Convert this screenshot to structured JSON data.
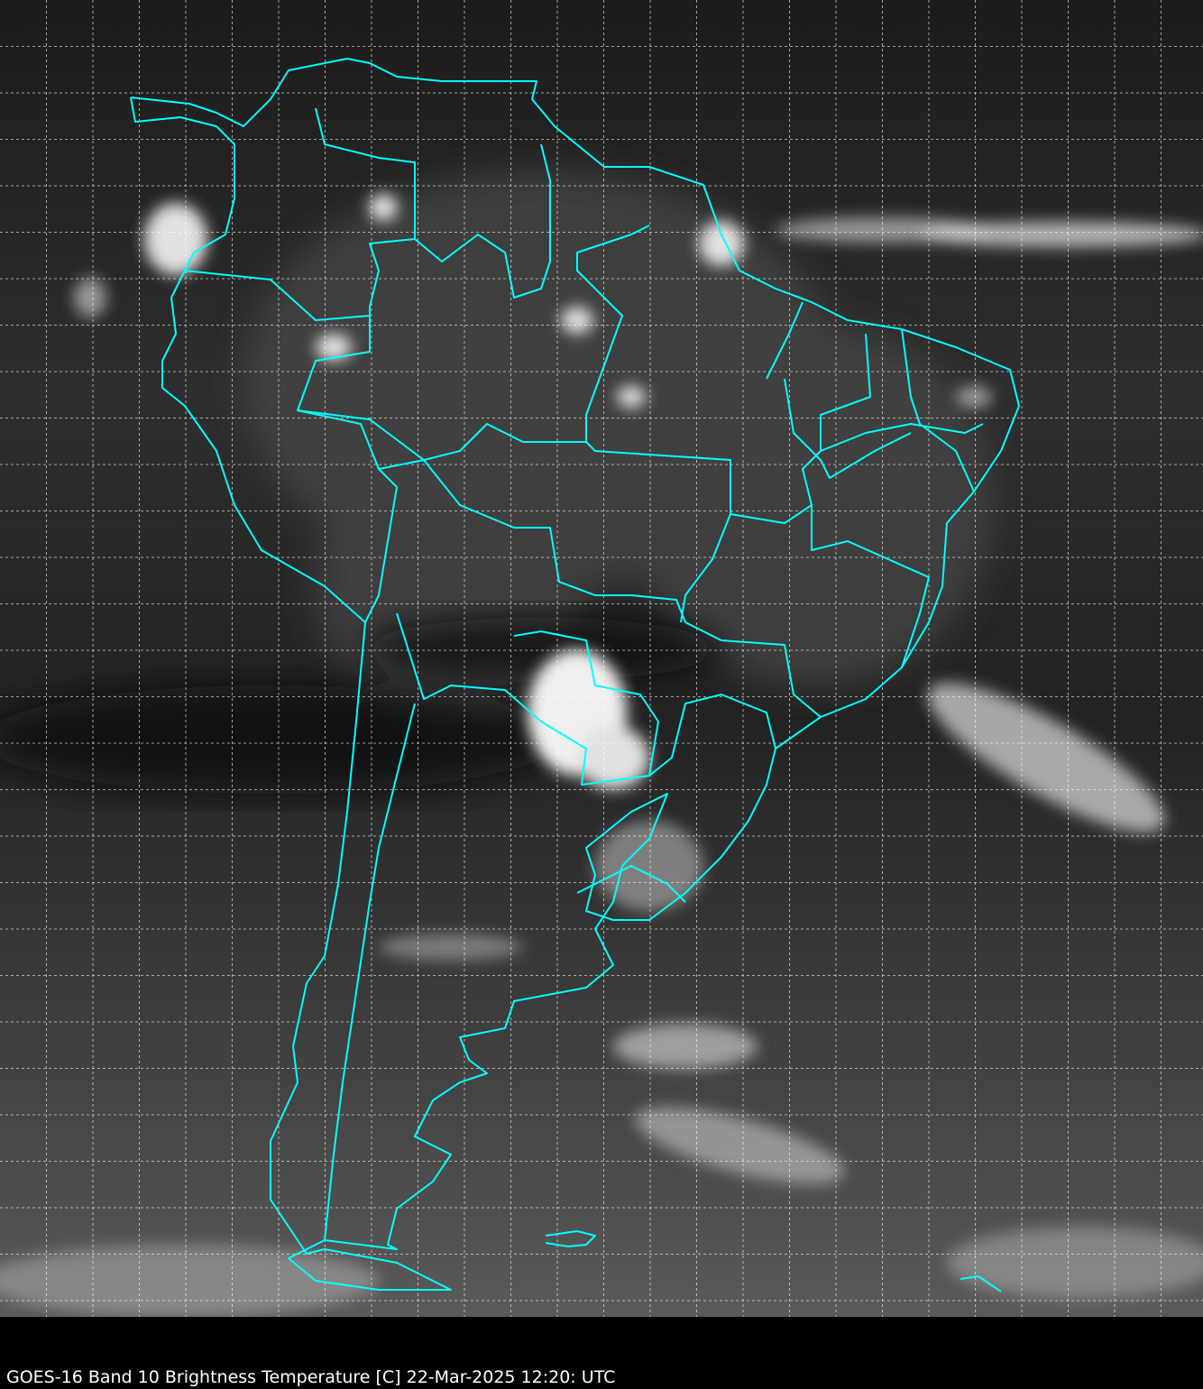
{
  "figure": {
    "caption": "GOES-16 Band 10  Brightness Temperature [C] 22-Mar-2025 12:20: UTC",
    "satellite": "GOES-16",
    "band": "Band 10",
    "quantity": "Brightness Temperature [C]",
    "datetime": "22-Mar-2025 12:20: UTC",
    "colormap": "grayscale",
    "overlay_color": "#00ffff",
    "grid_color": "#ffffff",
    "grid_style": "dashed",
    "region": "South America"
  }
}
